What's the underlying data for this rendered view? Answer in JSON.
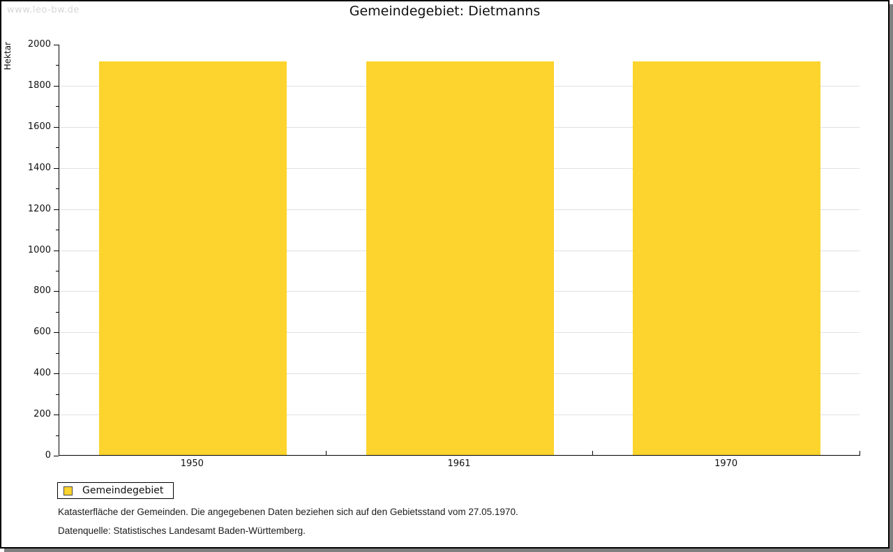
{
  "watermark": "www.leo-bw.de",
  "title": "Gemeindegebiet: Dietmanns",
  "chart_data": {
    "type": "bar",
    "title": "Gemeindegebiet: Dietmanns",
    "ylabel": "Hektar",
    "xlabel": "",
    "categories": [
      "1950",
      "1961",
      "1970"
    ],
    "series": [
      {
        "name": "Gemeindegebiet",
        "values": [
          1915,
          1915,
          1915
        ]
      }
    ],
    "ylim": [
      0,
      2000
    ],
    "ytick_step": 200,
    "ytick_minor_step": 100,
    "grid": "horizontal-major",
    "bar_color": "#fcd42d",
    "legend_position": "below-left"
  },
  "legend": {
    "items": [
      {
        "label": "Gemeindegebiet",
        "color": "#fcd42d"
      }
    ]
  },
  "footnotes": {
    "line1": "Katasterfläche der Gemeinden. Die angegebenen Daten beziehen sich auf den Gebietsstand vom 27.05.1970.",
    "line2": "Datenquelle: Statistisches Landesamt Baden-Württemberg."
  },
  "colors": {
    "bar": "#fcd42d",
    "gridline": "#e0e0e0",
    "axis": "#000000",
    "watermark": "#d7d7d7",
    "shadow": "#7f7f7f"
  }
}
